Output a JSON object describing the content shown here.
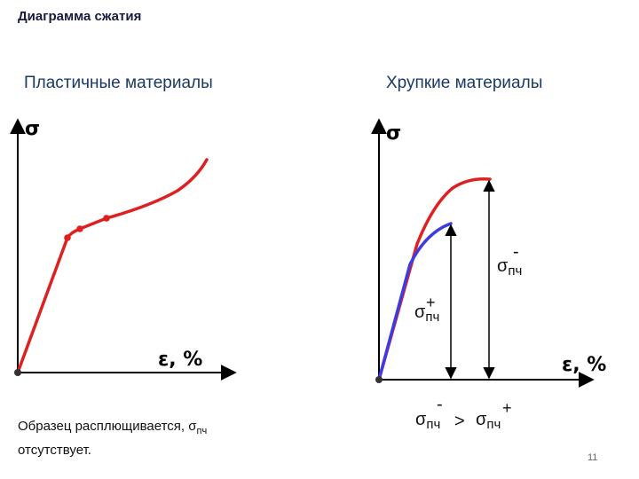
{
  "title": "Диаграмма сжатия",
  "left_panel": {
    "heading": "Пластичные материалы",
    "y_axis_label": "σ",
    "x_axis_label": "ε, %",
    "caption_prefix": "Образец расплющивается, σ",
    "caption_sub": "пч",
    "caption_suffix": " отсутствует."
  },
  "right_panel": {
    "heading": "Хрупкие материалы",
    "y_axis_label": "σ",
    "x_axis_label": "ε, %",
    "label_minus": {
      "sym": "σ",
      "sub": "пч",
      "sup": "-"
    },
    "label_plus": {
      "sym": "σ",
      "sub": "пч",
      "sup": "+"
    },
    "relation": {
      "left_sub": "пч",
      "left_sup": "-",
      "operator": ">",
      "right_sub": "пч",
      "right_sup": "+"
    }
  },
  "colors": {
    "curve_red": "#e02020",
    "curve_blue": "#3c3ce0",
    "axis": "#000000"
  },
  "page_number": "11"
}
